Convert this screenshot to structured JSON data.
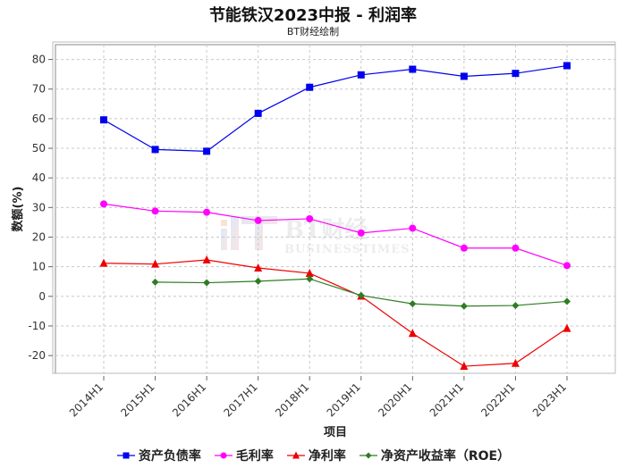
{
  "header": {
    "title": "节能铁汉2023中报 - 利润率",
    "subtitle": "BT财经绘制"
  },
  "watermark": {
    "brand": "BT财经",
    "tagline": "BUSINESSTIMES"
  },
  "chart_data": {
    "type": "line",
    "categories": [
      "2014H1",
      "2015H1",
      "2016H1",
      "2017H1",
      "2018H1",
      "2019H1",
      "2020H1",
      "2021H1",
      "2022H1",
      "2023H1"
    ],
    "xlabel": "项目",
    "ylabel": "数额(%)",
    "ylim": [
      -26,
      85
    ],
    "yticks": [
      -20,
      -10,
      0,
      10,
      20,
      30,
      40,
      50,
      60,
      70,
      80
    ],
    "grid": true,
    "legend_position": "bottom",
    "series": [
      {
        "name": "资产负债率",
        "color": "#0000ee",
        "marker": "square",
        "values": [
          59.6,
          49.6,
          49.0,
          61.8,
          70.6,
          74.8,
          76.7,
          74.3,
          75.3,
          77.9
        ]
      },
      {
        "name": "毛利率",
        "color": "#ff00ff",
        "marker": "circle",
        "values": [
          31.2,
          28.8,
          28.4,
          25.6,
          26.2,
          21.4,
          23.0,
          16.3,
          16.3,
          10.4
        ]
      },
      {
        "name": "净利率",
        "color": "#ee0000",
        "marker": "triangle",
        "values": [
          11.2,
          10.9,
          12.3,
          9.6,
          7.8,
          0.1,
          -12.5,
          -23.6,
          -22.6,
          -10.8
        ]
      },
      {
        "name": "净资产收益率（ROE）",
        "color": "#2e7d22",
        "marker": "diamond",
        "values": [
          null,
          4.8,
          4.6,
          5.1,
          5.9,
          0.3,
          -2.5,
          -3.3,
          -3.1,
          -1.7
        ]
      }
    ]
  }
}
